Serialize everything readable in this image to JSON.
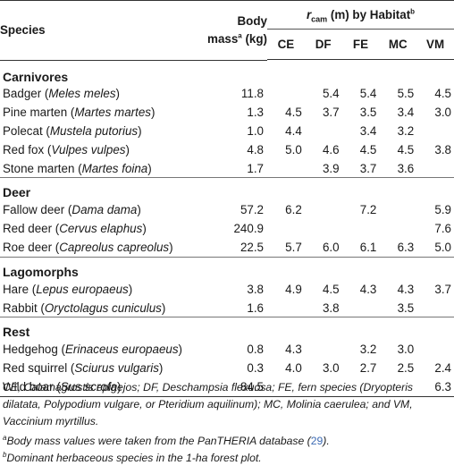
{
  "header": {
    "species": "Species",
    "mass_line1": "Body",
    "mass_line2a": "mass",
    "mass_sup": "a",
    "mass_line2b": " (kg)",
    "rcam_var": "r",
    "rcam_sub": "cam",
    "rcam_rest": " (m) by Habitat",
    "rcam_sup": "b",
    "habitats": [
      "CE",
      "DF",
      "FE",
      "MC",
      "VM"
    ]
  },
  "groups": [
    {
      "name": "Carnivores",
      "rows": [
        {
          "common": "Badger (",
          "latin": "Meles meles",
          "close": ")",
          "mass": "11.8",
          "v": [
            "",
            "5.4",
            "5.4",
            "5.5",
            "4.5"
          ]
        },
        {
          "common": "Pine marten (",
          "latin": "Martes martes",
          "close": ")",
          "mass": "1.3",
          "v": [
            "4.5",
            "3.7",
            "3.5",
            "3.4",
            "3.0"
          ]
        },
        {
          "common": "Polecat (",
          "latin": "Mustela putorius",
          "close": ")",
          "mass": "1.0",
          "v": [
            "4.4",
            "",
            "3.4",
            "3.2",
            ""
          ]
        },
        {
          "common": "Red fox (",
          "latin": "Vulpes vulpes",
          "close": ")",
          "mass": "4.8",
          "v": [
            "5.0",
            "4.6",
            "4.5",
            "4.5",
            "3.8"
          ]
        },
        {
          "common": "Stone marten (",
          "latin": "Martes foina",
          "close": ")",
          "mass": "1.7",
          "v": [
            "",
            "3.9",
            "3.7",
            "3.6",
            ""
          ]
        }
      ]
    },
    {
      "name": "Deer",
      "rows": [
        {
          "common": "Fallow deer (",
          "latin": "Dama dama",
          "close": ")",
          "mass": "57.2",
          "v": [
            "6.2",
            "",
            "7.2",
            "",
            "5.9"
          ]
        },
        {
          "common": "Red deer (",
          "latin": "Cervus elaphus",
          "close": ")",
          "mass": "240.9",
          "v": [
            "",
            "",
            "",
            "",
            "7.6"
          ]
        },
        {
          "common": "Roe deer (",
          "latin": "Capreolus capreolus",
          "close": ")",
          "mass": "22.5",
          "v": [
            "5.7",
            "6.0",
            "6.1",
            "6.3",
            "5.0"
          ]
        }
      ]
    },
    {
      "name": "Lagomorphs",
      "rows": [
        {
          "common": "Hare (",
          "latin": "Lepus europaeus",
          "close": ")",
          "mass": "3.8",
          "v": [
            "4.9",
            "4.5",
            "4.3",
            "4.3",
            "3.7"
          ]
        },
        {
          "common": "Rabbit (",
          "latin": "Oryctolagus cuniculus",
          "close": ")",
          "mass": "1.6",
          "v": [
            "",
            "3.8",
            "",
            "3.5",
            ""
          ]
        }
      ]
    },
    {
      "name": "Rest",
      "rows": [
        {
          "common": "Hedgehog (",
          "latin": "Erinaceus europaeus",
          "close": ")",
          "mass": "0.8",
          "v": [
            "4.3",
            "",
            "3.2",
            "3.0",
            ""
          ]
        },
        {
          "common": "Red squirrel (",
          "latin": "Sciurus vulgaris",
          "close": ")",
          "mass": "0.3",
          "v": [
            "4.0",
            "3.0",
            "2.7",
            "2.5",
            "2.4"
          ]
        },
        {
          "common": "Wild boar (",
          "latin": "Sus scrofa",
          "close": ")",
          "mass": "84.5",
          "v": [
            "",
            "",
            "",
            "",
            "6.3"
          ]
        }
      ]
    }
  ],
  "footnotes": {
    "abbrev": "CE, Calamagrostis epigejos; DF, Deschampsia flexuosa; FE, fern species (Dryopteris dilatata, Polypodium vulgare, or Pteridium aquilinum); MC, Molinia caerulea; and VM, Vaccinium myrtillus.",
    "a_mark": "a",
    "a_text": "Body mass values were taken from the PanTHERIA database (",
    "a_cite": "29",
    "a_end": ").",
    "b_mark": "b",
    "b_text": "Dominant herbaceous species in the 1-ha forest plot."
  }
}
